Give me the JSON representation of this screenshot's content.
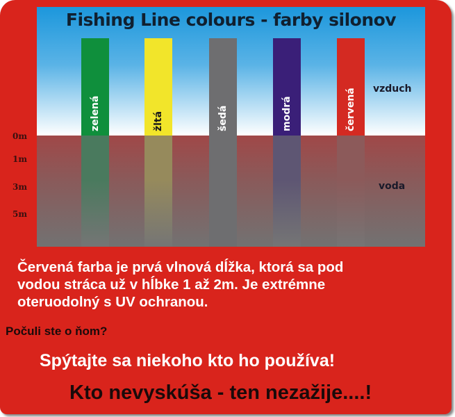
{
  "title": "Fishing Line colours - farby silonov",
  "air_label": "vzduch",
  "water_label": "voda",
  "depth_ticks": [
    "0m",
    "1m",
    "3m",
    "5m"
  ],
  "lines": [
    {
      "label": "zelená",
      "color": "#0f8f3c",
      "underwater_color": "#4a7a5e",
      "text_color": "#ffffff"
    },
    {
      "label": "žltá",
      "color": "#f2e52a",
      "underwater_color": "#968a5c",
      "text_color": "#1a1a1a"
    },
    {
      "label": "šedá",
      "color": "#6e6e70",
      "underwater_color": "#6e6e70",
      "text_color": "#ffffff"
    },
    {
      "label": "modrá",
      "color": "#3a1f78",
      "underwater_color": "#5e5673",
      "text_color": "#ffffff"
    },
    {
      "label": "červená",
      "color": "#d42a22",
      "underwater_color": "#8c5a5a",
      "text_color": "#ffffff"
    }
  ],
  "colors": {
    "background": "#d9241c",
    "sky_top": "#1c97dc",
    "water_top": "#a04848"
  },
  "paragraph": {
    "line1": "Červená farba je prvá vlnová dĺžka, ktorá sa pod",
    "line2": "vodou stráca už v hĺbke 1 až 2m. Je extrémne",
    "line3": "oteruodolný s UV ochranou."
  },
  "question": "Počuli ste o ňom?",
  "ask": "Spýtajte sa niekoho kto ho používa!",
  "closing": "Kto nevyskúša - ten nezažije....!"
}
